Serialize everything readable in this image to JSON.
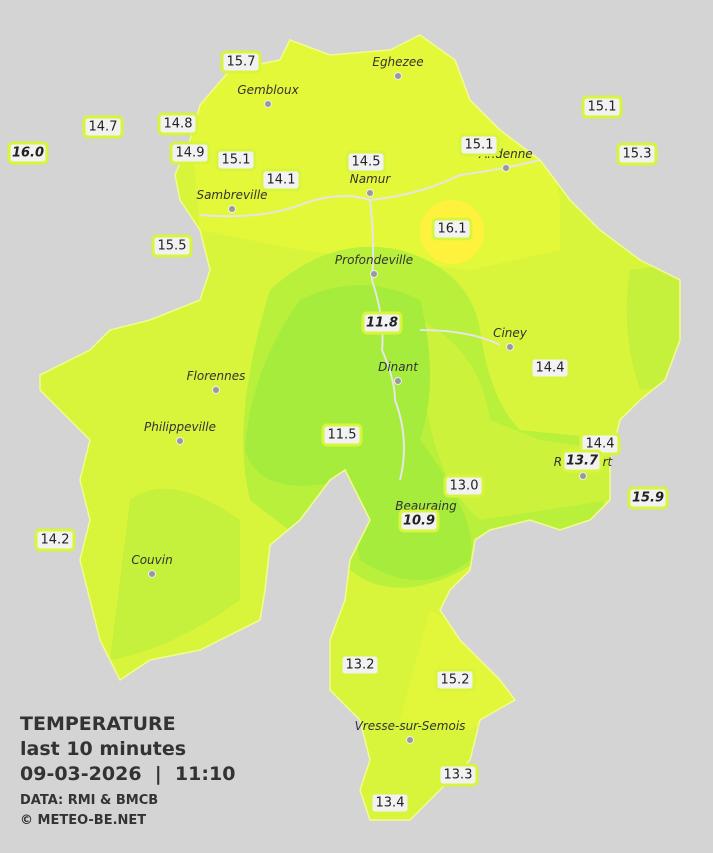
{
  "legend": {
    "title": "TEMPERATURE",
    "subtitle": "last 10 minutes",
    "timestamp": "09-03-2026  |  11:10",
    "source": "DATA: RMI & BMCB",
    "copyright": "© METEO-BE.NET"
  },
  "cities": [
    "Eghezee",
    "Gembloux",
    "Andenne",
    "Namur",
    "Sambreville",
    "Profondeville",
    "Ciney",
    "Florennes",
    "Dinant",
    "Philippeville",
    "Rochefort",
    "Beauraing",
    "Couvin",
    "Vresse-sur-Semois"
  ],
  "stations": [
    "15.7",
    "14.7",
    "14.8",
    "16.0",
    "14.9",
    "15.1",
    "14.1",
    "14.5",
    "15.1",
    "15.1",
    "15.3",
    "15.5",
    "16.1",
    "11.8",
    "14.4",
    "11.5",
    "14.4",
    "13.7",
    "13.0",
    "15.9",
    "10.9",
    "14.2",
    "13.2",
    "15.2",
    "13.3",
    "13.4"
  ]
}
